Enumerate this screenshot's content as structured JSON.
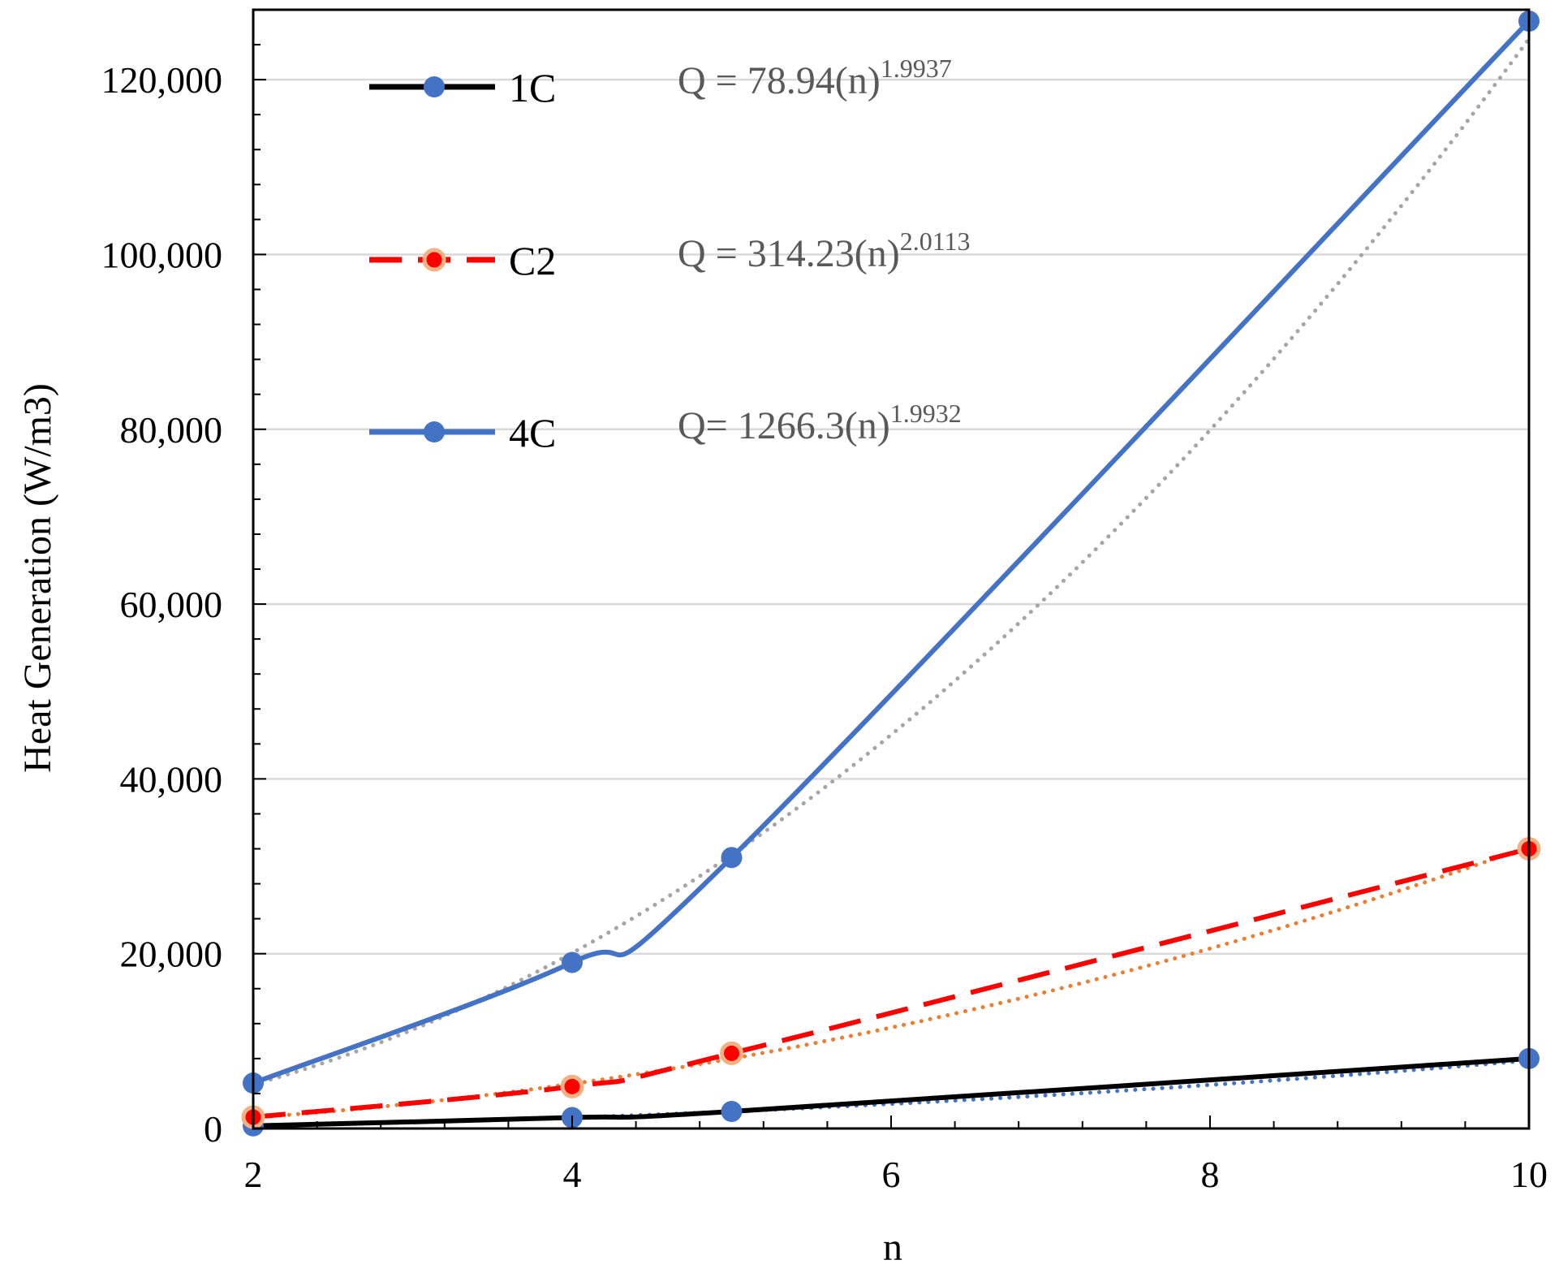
{
  "chart_data": {
    "type": "line",
    "title": "",
    "xlabel": "n",
    "ylabel": "Heat Generation (W/m3)",
    "x": [
      2,
      4,
      5,
      10
    ],
    "xlim": [
      2,
      10
    ],
    "ylim": [
      0,
      128000
    ],
    "xticks": [
      2,
      4,
      6,
      8,
      10
    ],
    "xtick_labels": [
      "2",
      "4",
      "6",
      "8",
      "10"
    ],
    "yticks": [
      0,
      20000,
      40000,
      60000,
      80000,
      100000,
      120000
    ],
    "ytick_labels": [
      "0",
      "20,000",
      "40,000",
      "60,000",
      "80,000",
      "100,000",
      "120,000"
    ],
    "grid": "horizontal",
    "legend_position": "top-left",
    "series": [
      {
        "name": "1C",
        "values": [
          300,
          1250,
          1950,
          8000
        ],
        "line_color": "#000000",
        "marker_color": "#4472C4",
        "line_style": "solid",
        "trend_color": "#4472C4",
        "trend_equation": {
          "prefix": "Q = 78.94(n)",
          "exponent": "1.9937"
        },
        "trend": {
          "a": 78.94,
          "b": 1.9937
        }
      },
      {
        "name": "C2",
        "values": [
          1300,
          4800,
          8600,
          32000
        ],
        "line_color": "#FF0000",
        "marker_color": "#FF0000",
        "marker_edge": "#F4B183",
        "line_style": "dashed",
        "trend_color": "#ED7D31",
        "trend_equation": {
          "prefix": "Q = 314.23(n)",
          "exponent": "2.0113"
        },
        "trend": {
          "a": 314.23,
          "b": 2.0113
        }
      },
      {
        "name": "4C",
        "values": [
          5200,
          19000,
          31000,
          126700
        ],
        "line_color": "#4472C4",
        "marker_color": "#4472C4",
        "line_style": "solid",
        "trend_color": "#A5A5A5",
        "trend_equation": {
          "prefix": "Q= 1266.3(n)",
          "exponent": "1.9932"
        },
        "trend": {
          "a": 1266.3,
          "b": 1.9932
        }
      }
    ]
  }
}
